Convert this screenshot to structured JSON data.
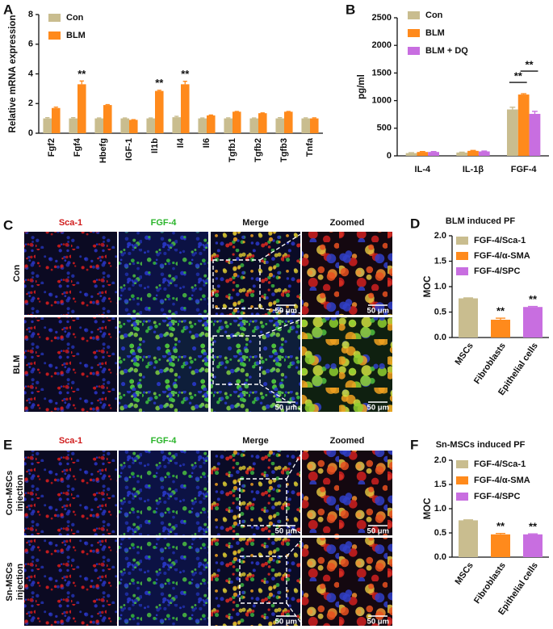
{
  "panel_labels": [
    "A",
    "B",
    "C",
    "D",
    "E",
    "F"
  ],
  "chart_data": [
    {
      "type": "bar",
      "ylabel": "Relative mRNA expression",
      "categories": [
        "Fgf2",
        "Fgf4",
        "Hbefg",
        "IGF-1",
        "Il1b",
        "Il4",
        "Il6",
        "Tgfb1",
        "Tgfb2",
        "Tgfb3",
        "Tnfa"
      ],
      "series": [
        {
          "name": "Con",
          "color": "#c9bd8f",
          "values": [
            1.0,
            1.0,
            1.0,
            1.0,
            1.0,
            1.08,
            1.0,
            1.0,
            1.0,
            1.0,
            1.0
          ],
          "errors": [
            0.05,
            0.05,
            0.03,
            0.03,
            0.03,
            0.06,
            0.03,
            0.04,
            0.03,
            0.05,
            0.04
          ]
        },
        {
          "name": "BLM",
          "color": "#ff8a1c",
          "values": [
            1.7,
            3.3,
            1.9,
            0.9,
            2.85,
            3.3,
            1.2,
            1.45,
            1.35,
            1.45,
            1.0
          ],
          "errors": [
            0.06,
            0.22,
            0.03,
            0.02,
            0.05,
            0.2,
            0.03,
            0.02,
            0.02,
            0.02,
            0.04
          ]
        }
      ],
      "ylim": [
        0,
        8
      ],
      "yticks": [
        0,
        2,
        4,
        6,
        8
      ],
      "legend": "upper left",
      "annotations": [
        {
          "text": "**",
          "category": "Fgf4",
          "series": "BLM"
        },
        {
          "text": "**",
          "category": "Il1b",
          "series": "BLM"
        },
        {
          "text": "**",
          "category": "Il4",
          "series": "BLM"
        }
      ]
    },
    {
      "type": "bar",
      "ylabel": "pg/ml",
      "categories": [
        "IL-4",
        "IL-1β",
        "FGF-4"
      ],
      "series": [
        {
          "name": "Con",
          "color": "#c9bd8f",
          "values": [
            50,
            60,
            840
          ],
          "errors": [
            8,
            8,
            40
          ]
        },
        {
          "name": "BLM",
          "color": "#ff8a1c",
          "values": [
            70,
            90,
            1110
          ],
          "errors": [
            8,
            8,
            15
          ]
        },
        {
          "name": "BLM + DQ",
          "color": "#c86ee0",
          "values": [
            70,
            80,
            760
          ],
          "errors": [
            8,
            8,
            45
          ]
        }
      ],
      "ylim": [
        0,
        2500
      ],
      "yticks": [
        0,
        500,
        1000,
        1500,
        2000,
        2500
      ],
      "legend": "upper left",
      "annotations": [
        {
          "text": "**",
          "category": "FGF-4",
          "from": "Con",
          "to": "BLM"
        },
        {
          "text": "**",
          "category": "FGF-4",
          "from": "BLM",
          "to": "BLM + DQ"
        }
      ]
    },
    {
      "type": "bar",
      "title": "BLM induced PF",
      "ylabel": "MOC",
      "categories": [
        "MSCs",
        "Fibroblasts",
        "Epithelial cells"
      ],
      "series": [
        {
          "name": "FGF-4/Sca-1",
          "color": "#c9bd8f",
          "values": [
            0.77,
            null,
            null
          ],
          "errors": [
            0.01,
            null,
            null
          ]
        },
        {
          "name": "FGF-4/α-SMA",
          "color": "#ff8a1c",
          "values": [
            null,
            0.35,
            null
          ],
          "errors": [
            null,
            0.03,
            null
          ]
        },
        {
          "name": "FGF-4/SPC",
          "color": "#c86ee0",
          "values": [
            null,
            null,
            0.6
          ],
          "errors": [
            null,
            null,
            0.01
          ]
        }
      ],
      "ylim": [
        0,
        2
      ],
      "yticks": [
        {
          "value": 0,
          "label": "0.0"
        },
        {
          "value": 0.5,
          "label": "0.5"
        },
        {
          "value": 1,
          "label": "1.0"
        },
        {
          "value": 1.5,
          "label": "1.5"
        },
        {
          "value": 2,
          "label": "2.0"
        }
      ],
      "legend": "upper left",
      "annotations": [
        {
          "text": "**",
          "category": "Fibroblasts",
          "series": "FGF-4/α-SMA"
        },
        {
          "text": "**",
          "category": "Epithelial cells",
          "series": "FGF-4/SPC"
        }
      ]
    },
    {
      "type": "bar",
      "title": "Sn-MSCs induced PF",
      "ylabel": "MOC",
      "categories": [
        "MSCs",
        "Fibroblasts",
        "Epithelial cells"
      ],
      "series": [
        {
          "name": "FGF-4/Sca-1",
          "color": "#c9bd8f",
          "values": [
            0.76,
            null,
            null
          ],
          "errors": [
            0.01,
            null,
            null
          ]
        },
        {
          "name": "FGF-4/α-SMA",
          "color": "#ff8a1c",
          "values": [
            null,
            0.47,
            null
          ],
          "errors": [
            null,
            0.02,
            null
          ]
        },
        {
          "name": "FGF-4/SPC",
          "color": "#c86ee0",
          "values": [
            null,
            null,
            0.47
          ],
          "errors": [
            null,
            null,
            0.01
          ]
        }
      ],
      "ylim": [
        0,
        2
      ],
      "yticks": [
        {
          "value": 0,
          "label": "0.0"
        },
        {
          "value": 0.5,
          "label": "0.5"
        },
        {
          "value": 1,
          "label": "1.0"
        },
        {
          "value": 1.5,
          "label": "1.5"
        },
        {
          "value": 2,
          "label": "2.0"
        }
      ],
      "legend": "upper left",
      "annotations": [
        {
          "text": "**",
          "category": "Fibroblasts",
          "series": "FGF-4/α-SMA"
        },
        {
          "text": "**",
          "category": "Epithelial cells",
          "series": "FGF-4/SPC"
        }
      ]
    }
  ],
  "microscopy": [
    {
      "columns": [
        "Sca-1",
        "FGF-4",
        "Merge",
        "Zoomed"
      ],
      "rows": [
        [
          "Con"
        ],
        [
          "BLM"
        ]
      ]
    },
    {
      "columns": [
        "Sca-1",
        "FGF-4",
        "Merge",
        "Zoomed"
      ],
      "rows": [
        [
          "Con-MSCs",
          "injection"
        ],
        [
          "Sn-MSCs",
          "injection"
        ]
      ]
    }
  ],
  "scale_bar": "50 μm"
}
